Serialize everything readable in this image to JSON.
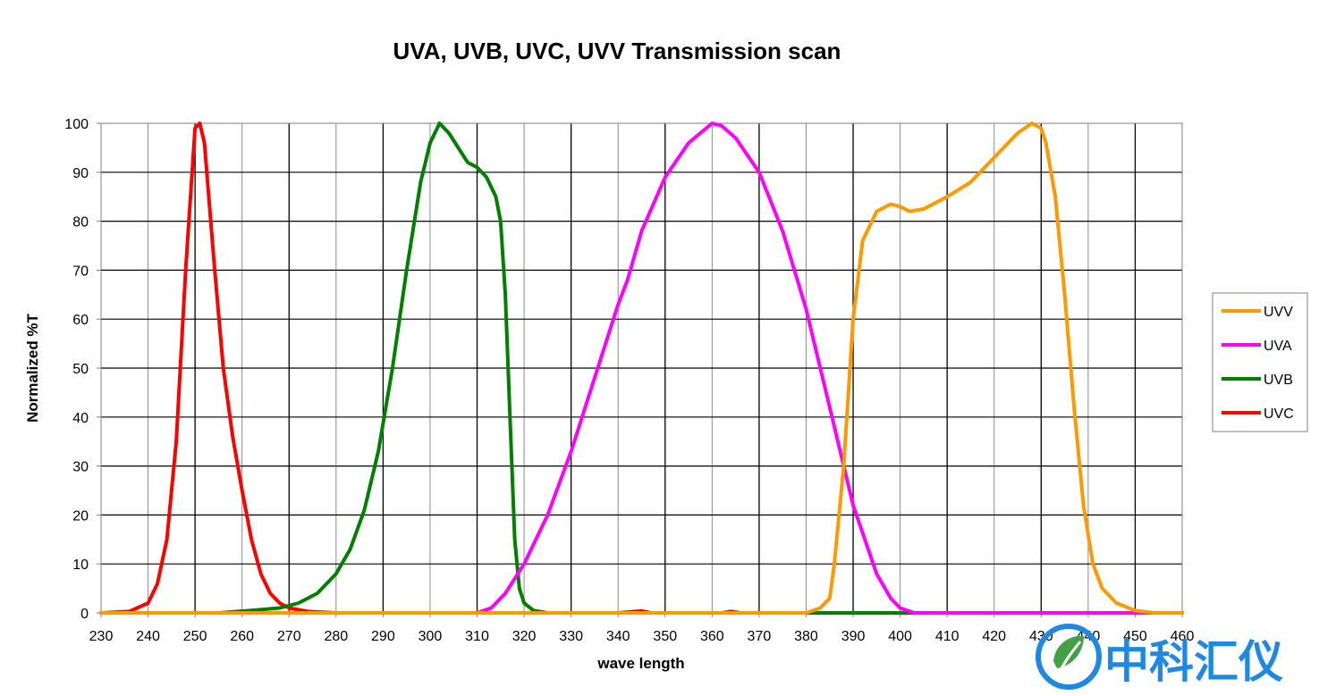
{
  "chart_data": {
    "type": "line",
    "title": "UVA, UVB, UVC, UVV Transmission scan",
    "xlabel": "wave length",
    "ylabel": "Normalized %T",
    "xlim": [
      230,
      460
    ],
    "ylim": [
      0,
      100
    ],
    "x_ticks": [
      230,
      240,
      250,
      260,
      270,
      280,
      290,
      300,
      310,
      320,
      330,
      340,
      350,
      360,
      370,
      380,
      390,
      400,
      410,
      420,
      430,
      440,
      450,
      460
    ],
    "x_tick_labels": [
      "230",
      "240",
      "250",
      "260",
      "270",
      "280",
      "290",
      "300",
      "310",
      "320",
      "330",
      "340",
      "350",
      "360",
      "370",
      "380",
      "390",
      "400",
      "410",
      "420",
      "430",
      "440",
      "450",
      "460"
    ],
    "y_ticks": [
      0,
      10,
      20,
      30,
      40,
      50,
      60,
      70,
      80,
      90,
      100
    ],
    "y_tick_labels": [
      "0",
      "10",
      "20",
      "30",
      "40",
      "50",
      "60",
      "70",
      "80",
      "90",
      "100"
    ],
    "grid": true,
    "legend_position": "right",
    "legend_order": [
      "UVV",
      "UVA",
      "UVB",
      "UVC"
    ],
    "series": [
      {
        "name": "UVC",
        "color": "#ff0000",
        "points": [
          [
            230,
            0
          ],
          [
            236,
            0.3
          ],
          [
            240,
            2
          ],
          [
            242,
            6
          ],
          [
            244,
            15
          ],
          [
            246,
            35
          ],
          [
            248,
            70
          ],
          [
            250,
            99
          ],
          [
            251,
            100
          ],
          [
            252,
            96
          ],
          [
            254,
            72
          ],
          [
            256,
            50
          ],
          [
            258,
            36
          ],
          [
            260,
            25
          ],
          [
            262,
            15
          ],
          [
            264,
            8
          ],
          [
            266,
            4
          ],
          [
            268,
            2
          ],
          [
            270,
            1
          ],
          [
            274,
            0.3
          ],
          [
            280,
            0
          ],
          [
            300,
            0
          ],
          [
            340,
            0
          ],
          [
            345,
            0.4
          ],
          [
            347,
            0
          ],
          [
            362,
            0
          ],
          [
            364,
            0.3
          ],
          [
            366,
            0
          ],
          [
            460,
            0
          ]
        ]
      },
      {
        "name": "UVB",
        "color": "#008000",
        "points": [
          [
            230,
            0
          ],
          [
            255,
            0
          ],
          [
            262,
            0.5
          ],
          [
            268,
            1
          ],
          [
            272,
            2
          ],
          [
            276,
            4
          ],
          [
            280,
            8
          ],
          [
            283,
            13
          ],
          [
            286,
            21
          ],
          [
            289,
            33
          ],
          [
            292,
            50
          ],
          [
            295,
            70
          ],
          [
            298,
            88
          ],
          [
            300,
            96
          ],
          [
            302,
            100
          ],
          [
            304,
            98
          ],
          [
            306,
            95
          ],
          [
            308,
            92
          ],
          [
            310,
            91
          ],
          [
            312,
            89
          ],
          [
            314,
            85
          ],
          [
            315,
            80
          ],
          [
            316,
            65
          ],
          [
            317,
            40
          ],
          [
            318,
            15
          ],
          [
            319,
            5
          ],
          [
            320,
            2
          ],
          [
            322,
            0.5
          ],
          [
            325,
            0
          ],
          [
            460,
            0
          ]
        ]
      },
      {
        "name": "UVA",
        "color": "#ff00ff",
        "points": [
          [
            230,
            0
          ],
          [
            310,
            0
          ],
          [
            313,
            1
          ],
          [
            316,
            4
          ],
          [
            320,
            10
          ],
          [
            325,
            20
          ],
          [
            330,
            33
          ],
          [
            335,
            48
          ],
          [
            340,
            63
          ],
          [
            342,
            68
          ],
          [
            345,
            78
          ],
          [
            350,
            89
          ],
          [
            355,
            96
          ],
          [
            360,
            100
          ],
          [
            362,
            99.5
          ],
          [
            365,
            97
          ],
          [
            370,
            90
          ],
          [
            375,
            78
          ],
          [
            380,
            62
          ],
          [
            385,
            42
          ],
          [
            390,
            22
          ],
          [
            395,
            8
          ],
          [
            398,
            3
          ],
          [
            400,
            1
          ],
          [
            403,
            0
          ],
          [
            460,
            0
          ]
        ]
      },
      {
        "name": "UVV",
        "color": "#ff9900",
        "points": [
          [
            230,
            0
          ],
          [
            380,
            0
          ],
          [
            383,
            1
          ],
          [
            385,
            3
          ],
          [
            386,
            10
          ],
          [
            388,
            30
          ],
          [
            390,
            60
          ],
          [
            392,
            76
          ],
          [
            395,
            82
          ],
          [
            398,
            83.5
          ],
          [
            400,
            83
          ],
          [
            402,
            82
          ],
          [
            405,
            82.5
          ],
          [
            410,
            85
          ],
          [
            415,
            88
          ],
          [
            420,
            93
          ],
          [
            425,
            98
          ],
          [
            428,
            100
          ],
          [
            430,
            99
          ],
          [
            431,
            96
          ],
          [
            433,
            85
          ],
          [
            435,
            65
          ],
          [
            437,
            42
          ],
          [
            439,
            22
          ],
          [
            441,
            10
          ],
          [
            443,
            5
          ],
          [
            446,
            2
          ],
          [
            450,
            0.5
          ],
          [
            454,
            0
          ],
          [
            460,
            0
          ]
        ]
      }
    ]
  },
  "watermark": {
    "text": "中科汇仪",
    "color": "#1e88e5",
    "icon": "leaf-circle-logo-icon"
  }
}
